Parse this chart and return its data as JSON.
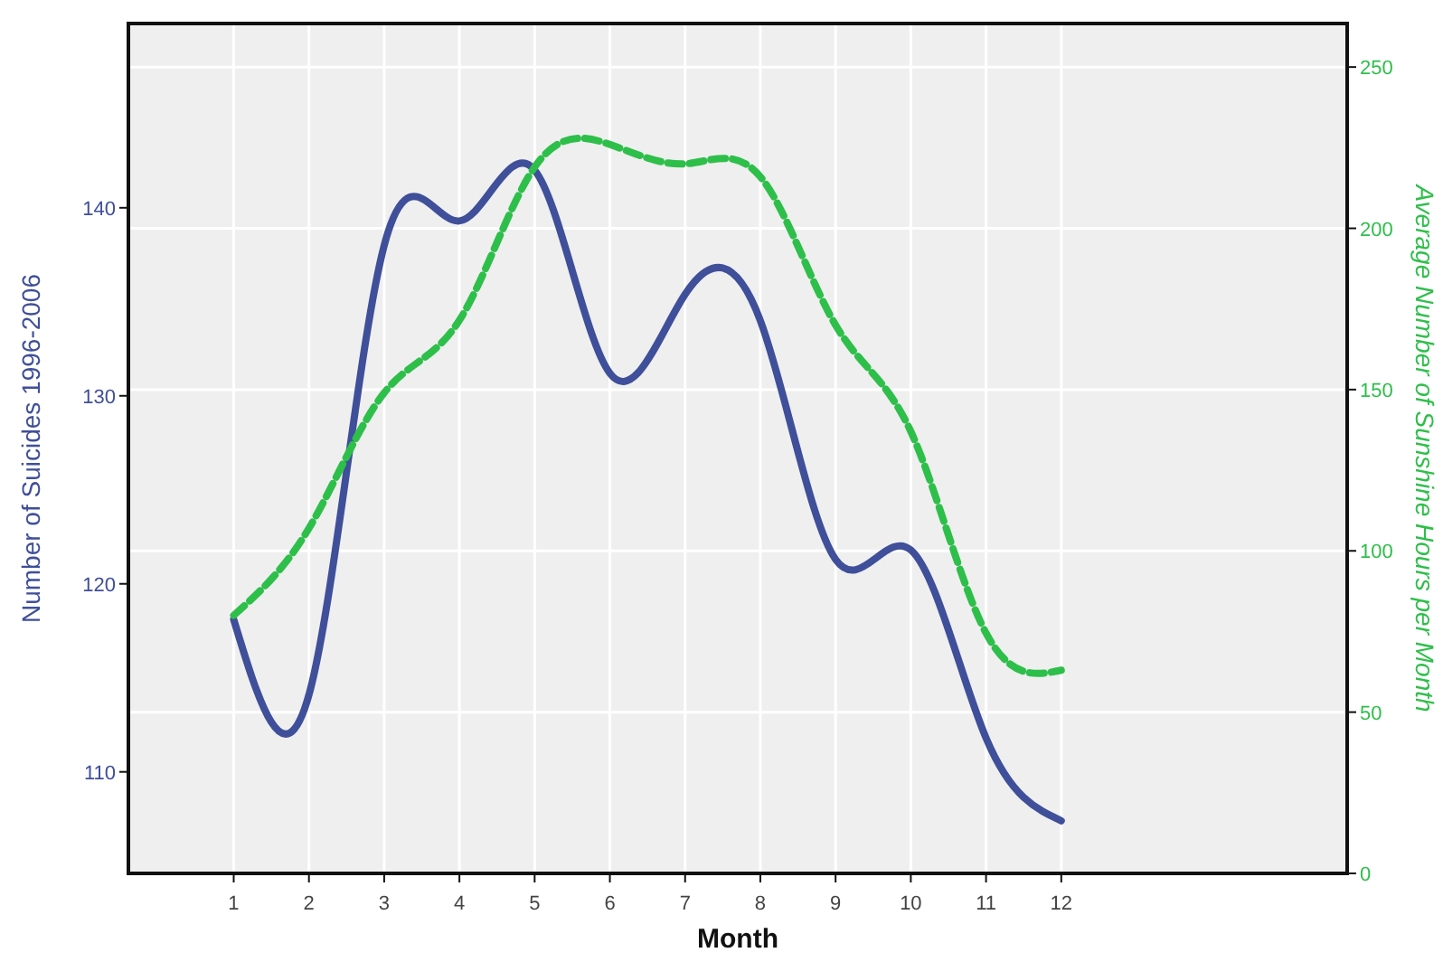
{
  "chart_data": {
    "type": "line",
    "xlabel": "Month",
    "ylabel": "Number of Suicides 1996-2006",
    "y2label": "Average Number of Sunshine Hours per Month",
    "x": [
      1,
      2,
      3,
      4,
      5,
      6,
      7,
      8,
      9,
      10,
      11,
      12
    ],
    "xlim": [
      -0.4,
      15.8
    ],
    "xticks": [
      1,
      2,
      3,
      4,
      5,
      6,
      7,
      8,
      9,
      10,
      11,
      12
    ],
    "ylim": [
      104.6,
      149.8
    ],
    "yticks": [
      110,
      120,
      130,
      140
    ],
    "y2lim": [
      0,
      263.5
    ],
    "y2ticks": [
      0,
      50,
      100,
      150,
      200,
      250
    ],
    "grid": true,
    "series": [
      {
        "color": "#3f4f9a",
        "line_style": "solid",
        "values": [
          118.1,
          114.1,
          138,
          139.3,
          142,
          131.2,
          135.4,
          134,
          121.3,
          121.8,
          111.8,
          107.4
        ]
      },
      {
        "color": "#2ebf4a",
        "line_style": "dashed",
        "axis": "y2",
        "values": [
          80,
          107,
          149,
          171.5,
          219,
          226,
          220,
          216,
          170,
          137,
          74.5,
          63
        ]
      }
    ]
  }
}
